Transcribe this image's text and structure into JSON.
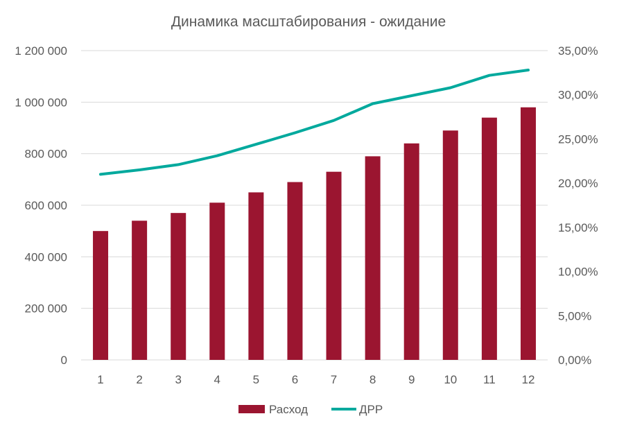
{
  "chart_data": {
    "type": "bar",
    "title": "Динамика масштабирования - ожидание",
    "xlabel": "",
    "ylabel": "",
    "categories": [
      "1",
      "2",
      "3",
      "4",
      "5",
      "6",
      "7",
      "8",
      "9",
      "10",
      "11",
      "12"
    ],
    "series": [
      {
        "name": "Расход",
        "type": "bar",
        "axis": "left",
        "color": "#9b1530",
        "values": [
          500000,
          540000,
          570000,
          610000,
          650000,
          690000,
          730000,
          790000,
          840000,
          890000,
          940000,
          980000
        ]
      },
      {
        "name": "ДРР",
        "type": "line",
        "axis": "right",
        "color": "#00a99d",
        "values": [
          0.21,
          0.215,
          0.221,
          0.231,
          0.244,
          0.257,
          0.271,
          0.29,
          0.299,
          0.308,
          0.322,
          0.328
        ]
      }
    ],
    "y_left": {
      "ylim": [
        0,
        1200000
      ],
      "ticks": [
        0,
        200000,
        400000,
        600000,
        800000,
        1000000,
        1200000
      ],
      "tick_labels": [
        "0",
        "200 000",
        "400 000",
        "600 000",
        "800 000",
        "1 000 000",
        "1 200 000"
      ]
    },
    "y_right": {
      "ylim": [
        0,
        0.35
      ],
      "ticks": [
        0,
        0.05,
        0.1,
        0.15,
        0.2,
        0.25,
        0.3,
        0.35
      ],
      "tick_labels": [
        "0,00%",
        "5,00%",
        "10,00%",
        "15,00%",
        "20,00%",
        "25,00%",
        "30,00%",
        "35,00%"
      ]
    },
    "grid": true,
    "legend": "bottom"
  }
}
